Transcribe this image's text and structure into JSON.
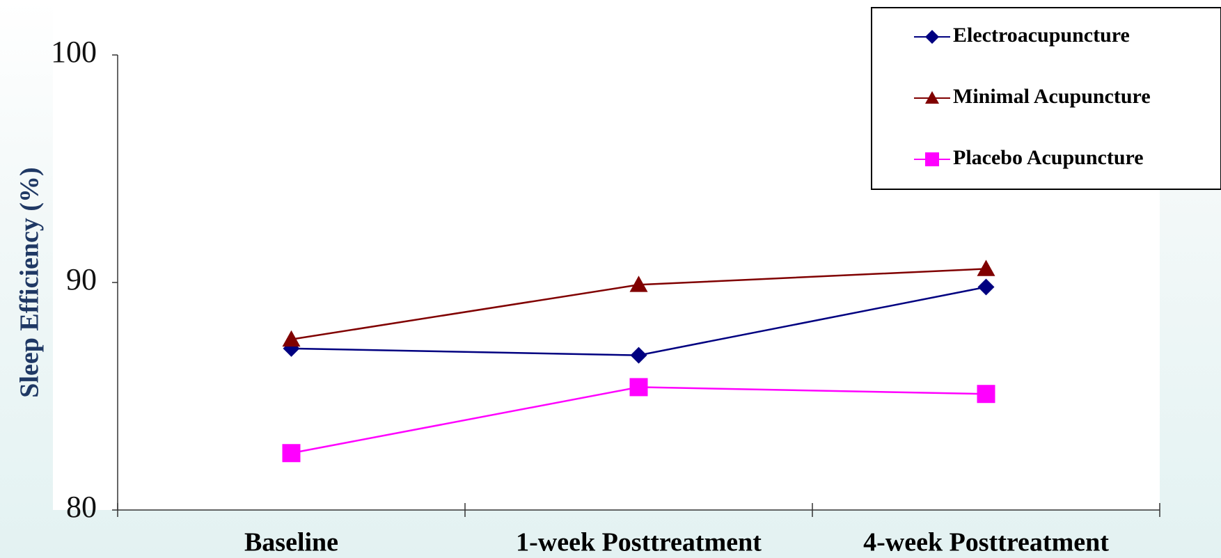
{
  "chart_data": {
    "type": "line",
    "y_label": "Sleep Efficiency (%)",
    "categories": [
      "Baseline",
      "1-week Posttreatment",
      "4-week Posttreatment"
    ],
    "series": [
      {
        "name": "Electroacupuncture",
        "color": "#000080",
        "marker": "diamond",
        "values": [
          87.1,
          86.8,
          89.8
        ]
      },
      {
        "name": "Minimal Acupuncture",
        "color": "#800000",
        "marker": "triangle",
        "values": [
          87.5,
          89.9,
          90.6
        ]
      },
      {
        "name": "Placebo Acupuncture",
        "color": "#ff00ff",
        "marker": "square",
        "values": [
          82.5,
          85.4,
          85.1
        ]
      }
    ],
    "ylim": [
      80,
      100
    ],
    "yticks": [
      80,
      90,
      100
    ]
  }
}
